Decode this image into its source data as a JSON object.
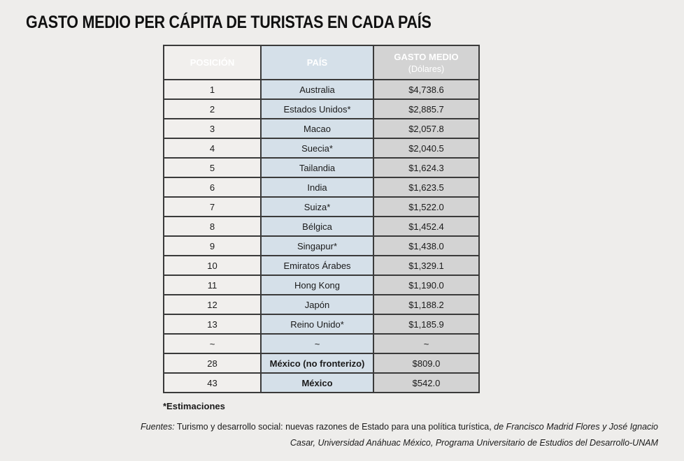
{
  "title": "GASTO MEDIO PER CÁPITA DE TURISTAS EN CADA PAÍS",
  "table": {
    "headers": {
      "position": "POSICIÓN",
      "country": "PAÍS",
      "spend": "GASTO MEDIO",
      "spend_unit": "(Dólares)"
    },
    "rows": [
      {
        "position": "1",
        "country": "Australia",
        "spend": "$4,738.6"
      },
      {
        "position": "2",
        "country": "Estados Unidos*",
        "spend": "$2,885.7"
      },
      {
        "position": "3",
        "country": "Macao",
        "spend": "$2,057.8"
      },
      {
        "position": "4",
        "country": "Suecia*",
        "spend": "$2,040.5"
      },
      {
        "position": "5",
        "country": "Tailandia",
        "spend": "$1,624.3"
      },
      {
        "position": "6",
        "country": "India",
        "spend": "$1,623.5"
      },
      {
        "position": "7",
        "country": "Suiza*",
        "spend": "$1,522.0"
      },
      {
        "position": "8",
        "country": "Bélgica",
        "spend": "$1,452.4"
      },
      {
        "position": "9",
        "country": "Singapur*",
        "spend": "$1,438.0"
      },
      {
        "position": "10",
        "country": "Emiratos Árabes",
        "spend": "$1,329.1"
      },
      {
        "position": "11",
        "country": "Hong Kong",
        "spend": "$1,190.0"
      },
      {
        "position": "12",
        "country": "Japón",
        "spend": "$1,188.2"
      },
      {
        "position": "13",
        "country": "Reino Unido*",
        "spend": "$1,185.9"
      },
      {
        "position": "~",
        "country": "~",
        "spend": "~"
      },
      {
        "position": "28",
        "country": "México (no fronterizo)",
        "spend": "$809.0",
        "bold": true
      },
      {
        "position": "43",
        "country": "México",
        "spend": "$542.0",
        "bold": true
      }
    ]
  },
  "footnote": "*Estimaciones",
  "source": {
    "label": "Fuentes:",
    "title": " Turismo y desarrollo social: nuevas razones de Estado para una política turística,",
    "rest": " de Francisco Madrid Flores y José Ignacio Casar, Universidad Anáhuac México, Programa Universitario de Estudios del Desarrollo-UNAM"
  }
}
